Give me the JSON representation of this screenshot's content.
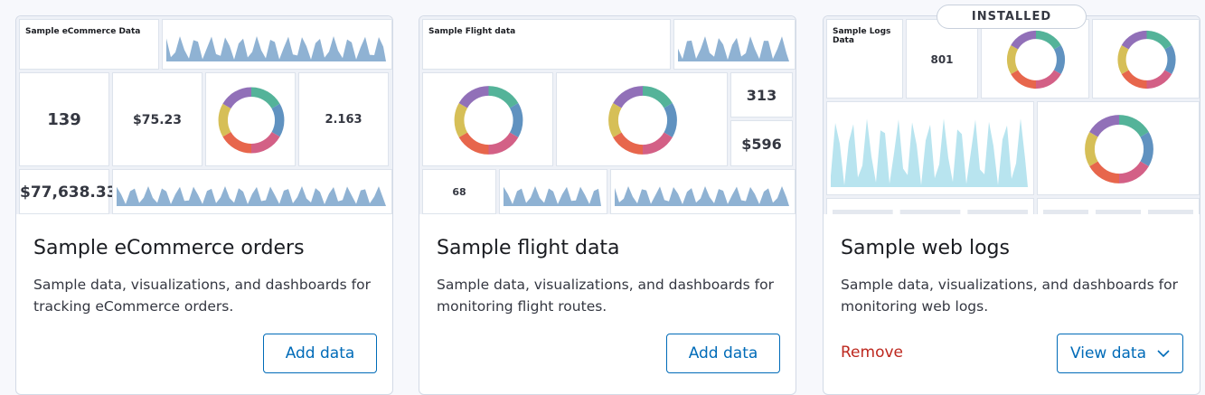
{
  "cards": [
    {
      "title": "Sample eCommerce orders",
      "description": "Sample data, visualizations, and dashboards for tracking eCommerce orders.",
      "button": "Add data",
      "preview": {
        "heading": "Sample eCommerce Data",
        "metrics": [
          "139",
          "$75.23",
          "2.163",
          "$77,638.33"
        ]
      }
    },
    {
      "title": "Sample flight data",
      "description": "Sample data, visualizations, and dashboards for monitoring flight routes.",
      "button": "Add data",
      "preview": {
        "heading": "Sample Flight data",
        "metrics": [
          "313",
          "$596",
          "68"
        ]
      }
    },
    {
      "title": "Sample web logs",
      "description": "Sample data, visualizations, and dashboards for monitoring web logs.",
      "badge": "INSTALLED",
      "remove": "Remove",
      "button": "View data",
      "preview": {
        "heading": "Sample Logs Data",
        "metrics": [
          "801"
        ]
      }
    }
  ]
}
